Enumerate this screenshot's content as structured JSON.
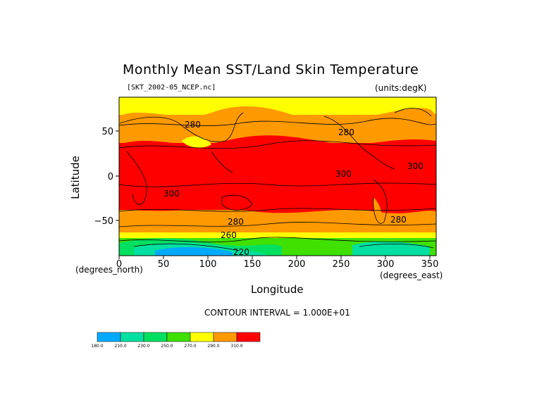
{
  "title": "Monthly Mean SST/Land Skin Temperature",
  "file_label": "[SKT_2002-05_NCEP.nc]",
  "units_label": "(units:degK)",
  "axes": {
    "ylabel": "Latitude",
    "xlabel": "Longitude",
    "x_units_left": "(degrees_north)",
    "x_units_right": "(degrees_east)",
    "y_ticks": [
      "50",
      "0",
      "−50"
    ],
    "x_ticks": [
      "0",
      "50",
      "100",
      "150",
      "200",
      "250",
      "300",
      "350"
    ]
  },
  "contour_labels": [
    "280",
    "280",
    "300",
    "300",
    "300",
    "280",
    "280",
    "260",
    "220"
  ],
  "contour_note": "CONTOUR INTERVAL = 1.000E+01",
  "colorbar": {
    "labels": [
      "180.0",
      "210.0",
      "230.0",
      "250.0",
      "270.0",
      "290.0",
      "310.0"
    ],
    "colors": [
      "#00aaff",
      "#00e0a0",
      "#00e060",
      "#40e000",
      "#ffff00",
      "#ff9900",
      "#ff0000"
    ]
  },
  "map_colors": {
    "warm": "#ff0000",
    "mild": "#ff9900",
    "cool": "#ffff00",
    "cold_green": "#40e000",
    "colder": "#00e0a0",
    "coldest": "#00aaff"
  }
}
